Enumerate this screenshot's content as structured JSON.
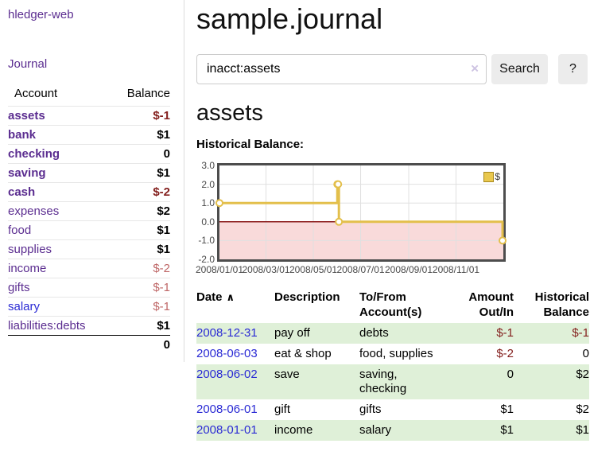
{
  "sidebar": {
    "brand": "hledger-web",
    "journal_link": "Journal",
    "accounts": {
      "header_account": "Account",
      "header_balance": "Balance",
      "rows": [
        {
          "name": "assets",
          "balance": "$-1"
        },
        {
          "name": "bank",
          "balance": "$1"
        },
        {
          "name": "checking",
          "balance": "0"
        },
        {
          "name": "saving",
          "balance": "$1"
        },
        {
          "name": "cash",
          "balance": "$-2"
        },
        {
          "name": "expenses",
          "balance": "$2"
        },
        {
          "name": "food",
          "balance": "$1"
        },
        {
          "name": "supplies",
          "balance": "$1"
        },
        {
          "name": "income",
          "balance": "$-2"
        },
        {
          "name": "gifts",
          "balance": "$-1"
        },
        {
          "name": "salary",
          "balance": "$-1"
        },
        {
          "name": "liabilities:debts",
          "balance": "$1"
        }
      ],
      "total": "0"
    }
  },
  "header": {
    "title": "sample.journal"
  },
  "search": {
    "value": "inacct:assets",
    "clear_icon": "×",
    "search_button": "Search",
    "help_button": "?"
  },
  "account_page": {
    "title": "assets",
    "chart_label": "Historical Balance:"
  },
  "chart_data": {
    "type": "line",
    "step": true,
    "title": "Historical Balance:",
    "series": [
      {
        "name": "$",
        "points": [
          {
            "date": "2008-01-01",
            "value": 1
          },
          {
            "date": "2008-06-01",
            "value": 2
          },
          {
            "date": "2008-06-02",
            "value": 2
          },
          {
            "date": "2008-06-03",
            "value": 0
          },
          {
            "date": "2008-12-31",
            "value": -1
          }
        ]
      }
    ],
    "x_range": [
      "2008-01-01",
      "2009-01-01"
    ],
    "ylim": [
      -2,
      3
    ],
    "yticks": [
      3,
      2,
      1,
      0,
      -1,
      -2
    ],
    "ytick_labels": [
      "3.0",
      "2.0",
      "1.0",
      "0.0",
      "-1.0",
      "-2.0"
    ],
    "xtick_dates": [
      "2008-01-01",
      "2008-03-01",
      "2008-05-01",
      "2008-07-01",
      "2008-09-01",
      "2008-11-01"
    ],
    "xtick_labels": [
      "2008/01/01",
      "2008/03/01",
      "2008/05/01",
      "2008/07/01",
      "2008/09/01",
      "2008/11/01"
    ],
    "legend": {
      "label": "$",
      "position": "top-right"
    },
    "grid": true,
    "colors": {
      "line": "#e3bf4b",
      "marker_fill": "#ffffff",
      "negative_region": "#f9dada",
      "zero_line": "#8b1a1a",
      "grid": "#e0e0e0",
      "border": "#4d4d4d"
    }
  },
  "register": {
    "headers": {
      "date": "Date",
      "sort_icon": "∧",
      "description": "Description",
      "accounts": "To/From Account(s)",
      "amount": "Amount Out/In",
      "balance": "Historical Balance"
    },
    "rows": [
      {
        "date": "2008-12-31",
        "description": "pay off",
        "accounts": "debts",
        "amount": "$-1",
        "balance": "$-1"
      },
      {
        "date": "2008-06-03",
        "description": "eat & shop",
        "accounts": "food, supplies",
        "amount": "$-2",
        "balance": "0"
      },
      {
        "date": "2008-06-02",
        "description": "save",
        "accounts": "saving, checking",
        "amount": "0",
        "balance": "$2"
      },
      {
        "date": "2008-06-01",
        "description": "gift",
        "accounts": "gifts",
        "amount": "$1",
        "balance": "$2"
      },
      {
        "date": "2008-01-01",
        "description": "income",
        "accounts": "salary",
        "amount": "$1",
        "balance": "$1"
      }
    ]
  }
}
